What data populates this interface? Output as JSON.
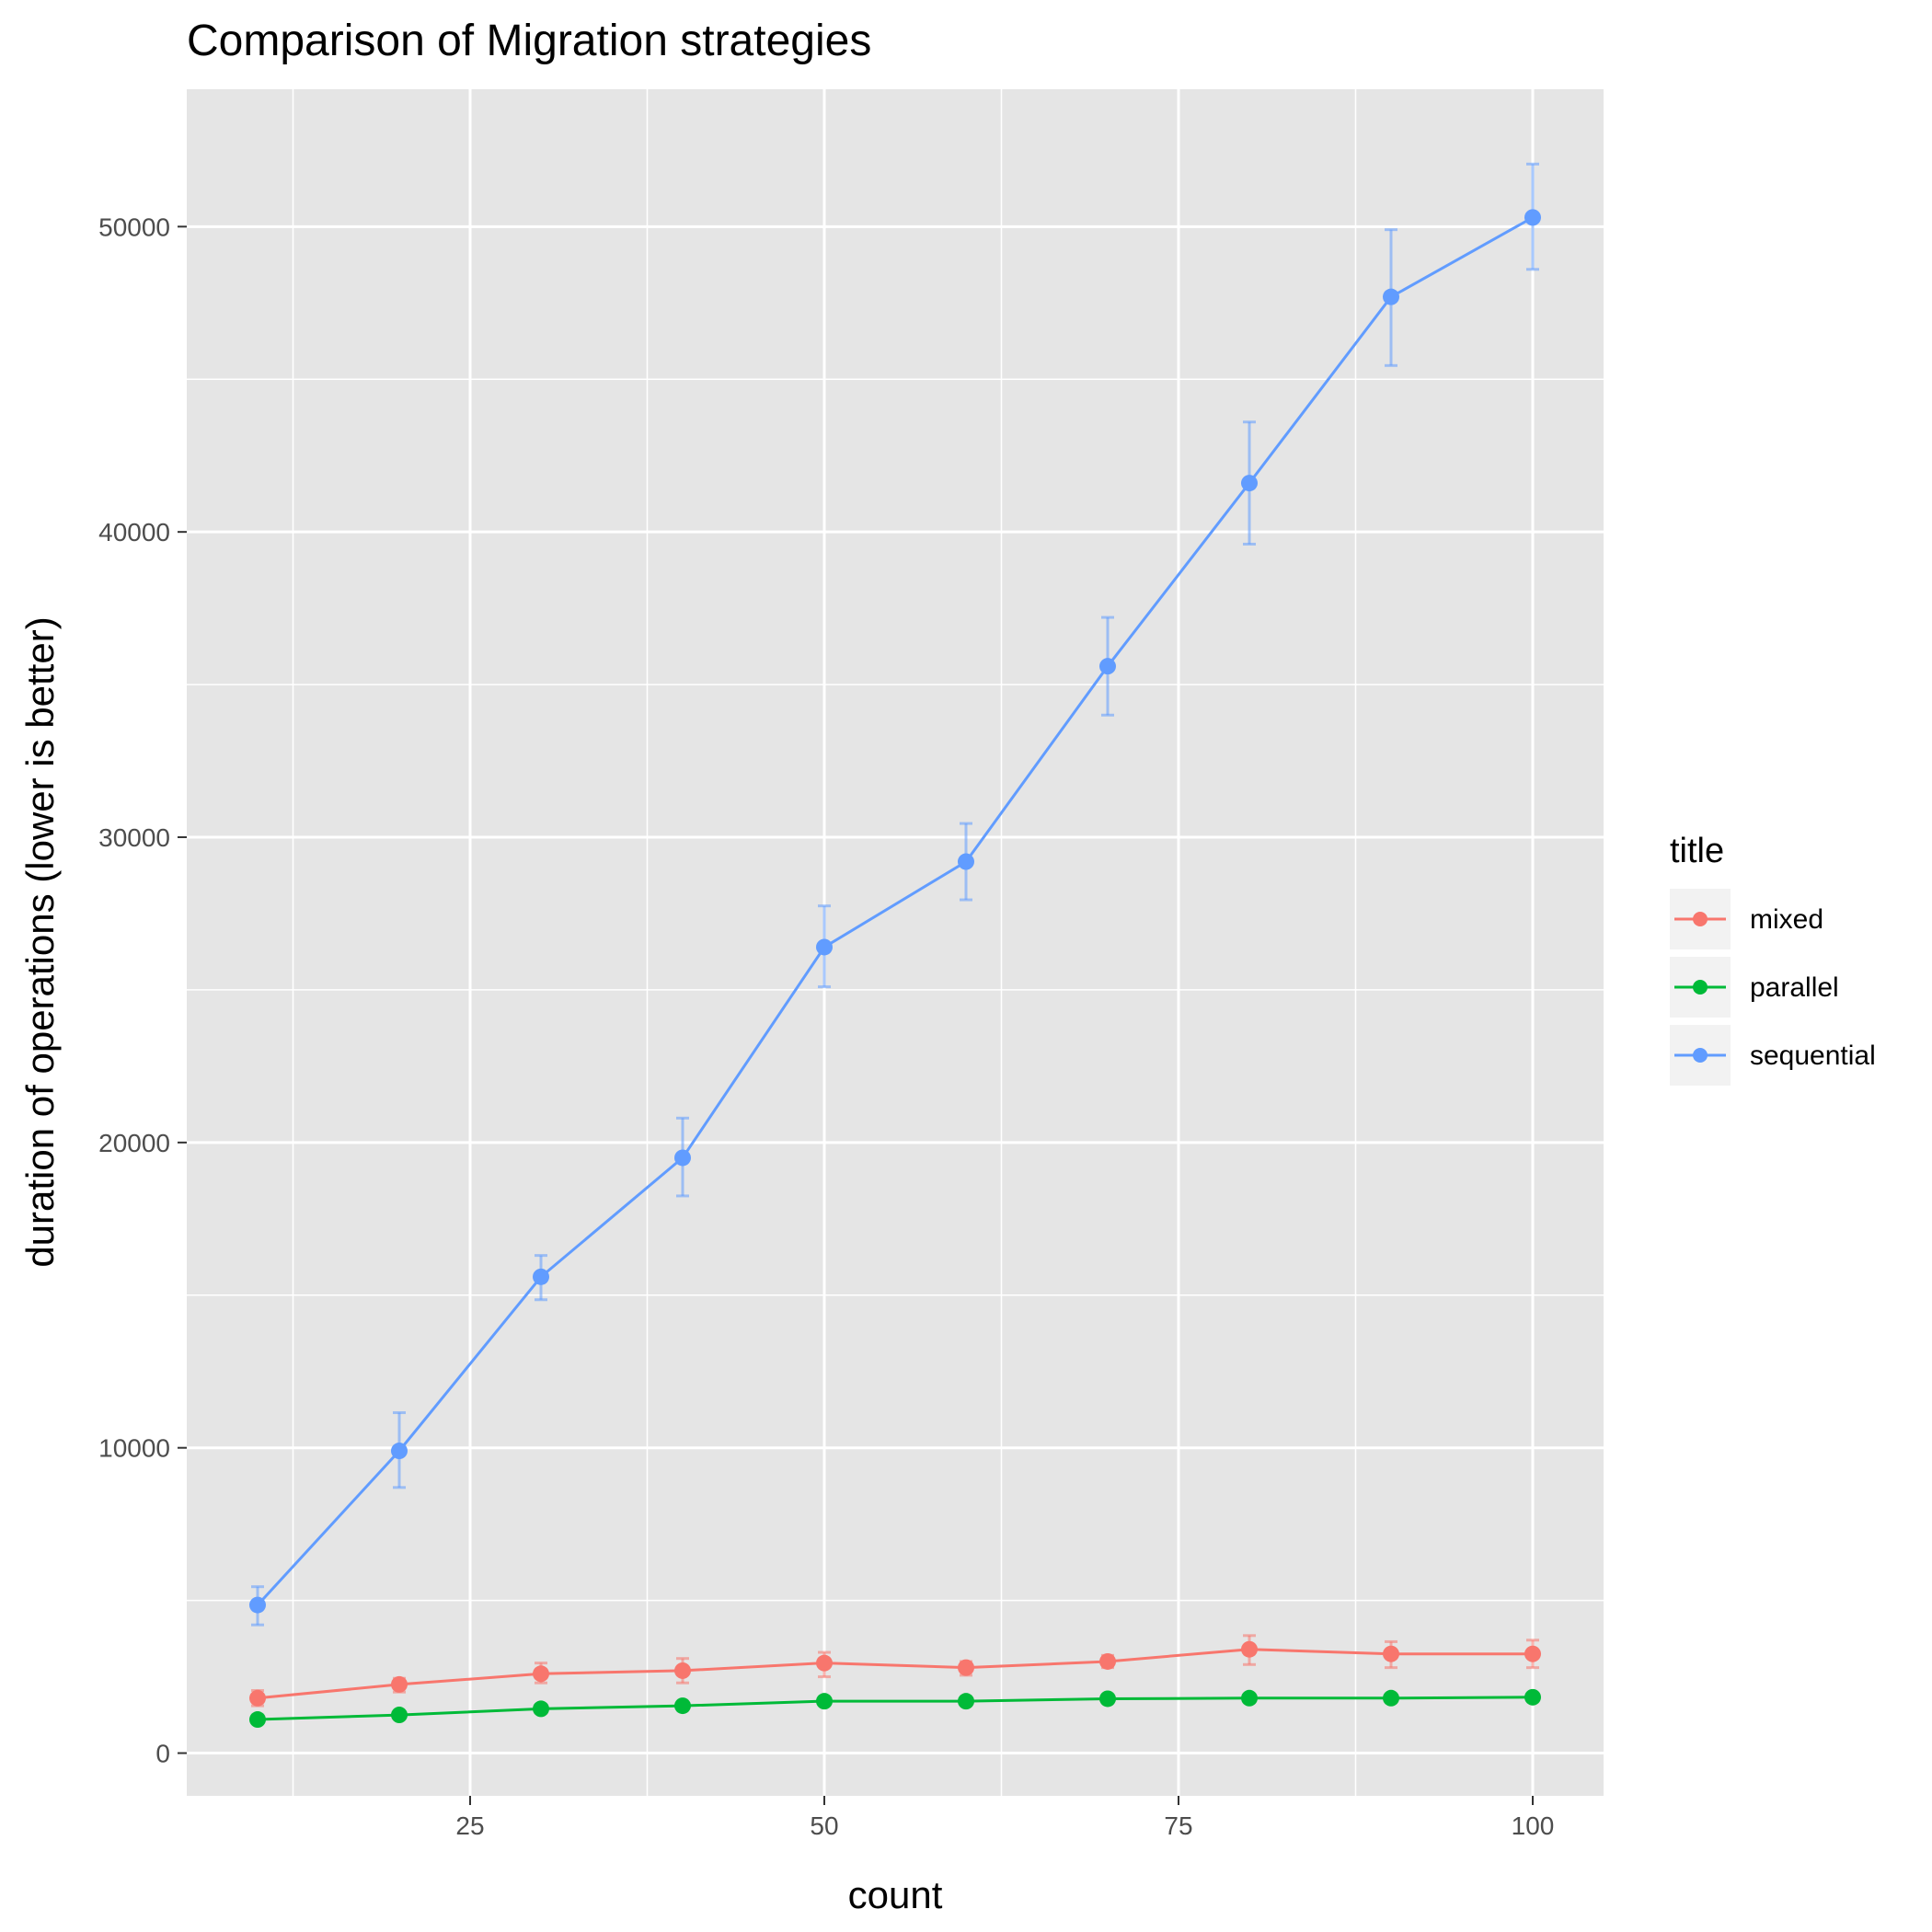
{
  "chart_data": {
    "type": "line",
    "title": "Comparison of Migration strategies",
    "xlabel": "count",
    "ylabel": "duration of operations (lower is better)",
    "xlim": [
      5,
      105
    ],
    "ylim": [
      -1400,
      54500
    ],
    "x_ticks": [
      {
        "value": 25,
        "label": "25"
      },
      {
        "value": 50,
        "label": "50"
      },
      {
        "value": 75,
        "label": "75"
      },
      {
        "value": 100,
        "label": "100"
      }
    ],
    "y_ticks": [
      {
        "value": 0,
        "label": "0"
      },
      {
        "value": 10000,
        "label": "10000"
      },
      {
        "value": 20000,
        "label": "20000"
      },
      {
        "value": 30000,
        "label": "30000"
      },
      {
        "value": 40000,
        "label": "40000"
      },
      {
        "value": 50000,
        "label": "50000"
      }
    ],
    "grid": true,
    "legend_title": "title",
    "legend_position": "right",
    "x": [
      10,
      20,
      30,
      40,
      50,
      60,
      70,
      80,
      90,
      100
    ],
    "series": [
      {
        "name": "mixed",
        "color": "#F8766D",
        "values": [
          1800,
          2250,
          2600,
          2700,
          2950,
          2800,
          3000,
          3400,
          3250,
          3250
        ],
        "error_low": [
          1550,
          2000,
          2300,
          2300,
          2500,
          2550,
          2800,
          2900,
          2800,
          2800
        ],
        "error_high": [
          2050,
          2450,
          2950,
          3100,
          3300,
          3000,
          3200,
          3850,
          3650,
          3700
        ]
      },
      {
        "name": "parallel",
        "color": "#00BA38",
        "values": [
          1100,
          1250,
          1450,
          1550,
          1700,
          1700,
          1780,
          1800,
          1800,
          1830
        ],
        "error_low": [
          1050,
          1180,
          1380,
          1480,
          1620,
          1630,
          1710,
          1730,
          1720,
          1760
        ],
        "error_high": [
          1150,
          1320,
          1520,
          1620,
          1780,
          1770,
          1850,
          1870,
          1880,
          1900
        ]
      },
      {
        "name": "sequential",
        "color": "#619CFF",
        "values": [
          4850,
          9900,
          15600,
          19500,
          26400,
          29200,
          35600,
          41600,
          47700,
          50300
        ],
        "error_low": [
          4200,
          8700,
          14850,
          18250,
          25100,
          27950,
          34000,
          39600,
          45450,
          48600
        ],
        "error_high": [
          5450,
          11150,
          16300,
          20800,
          27750,
          30450,
          37200,
          43600,
          49900,
          52050
        ]
      }
    ]
  }
}
